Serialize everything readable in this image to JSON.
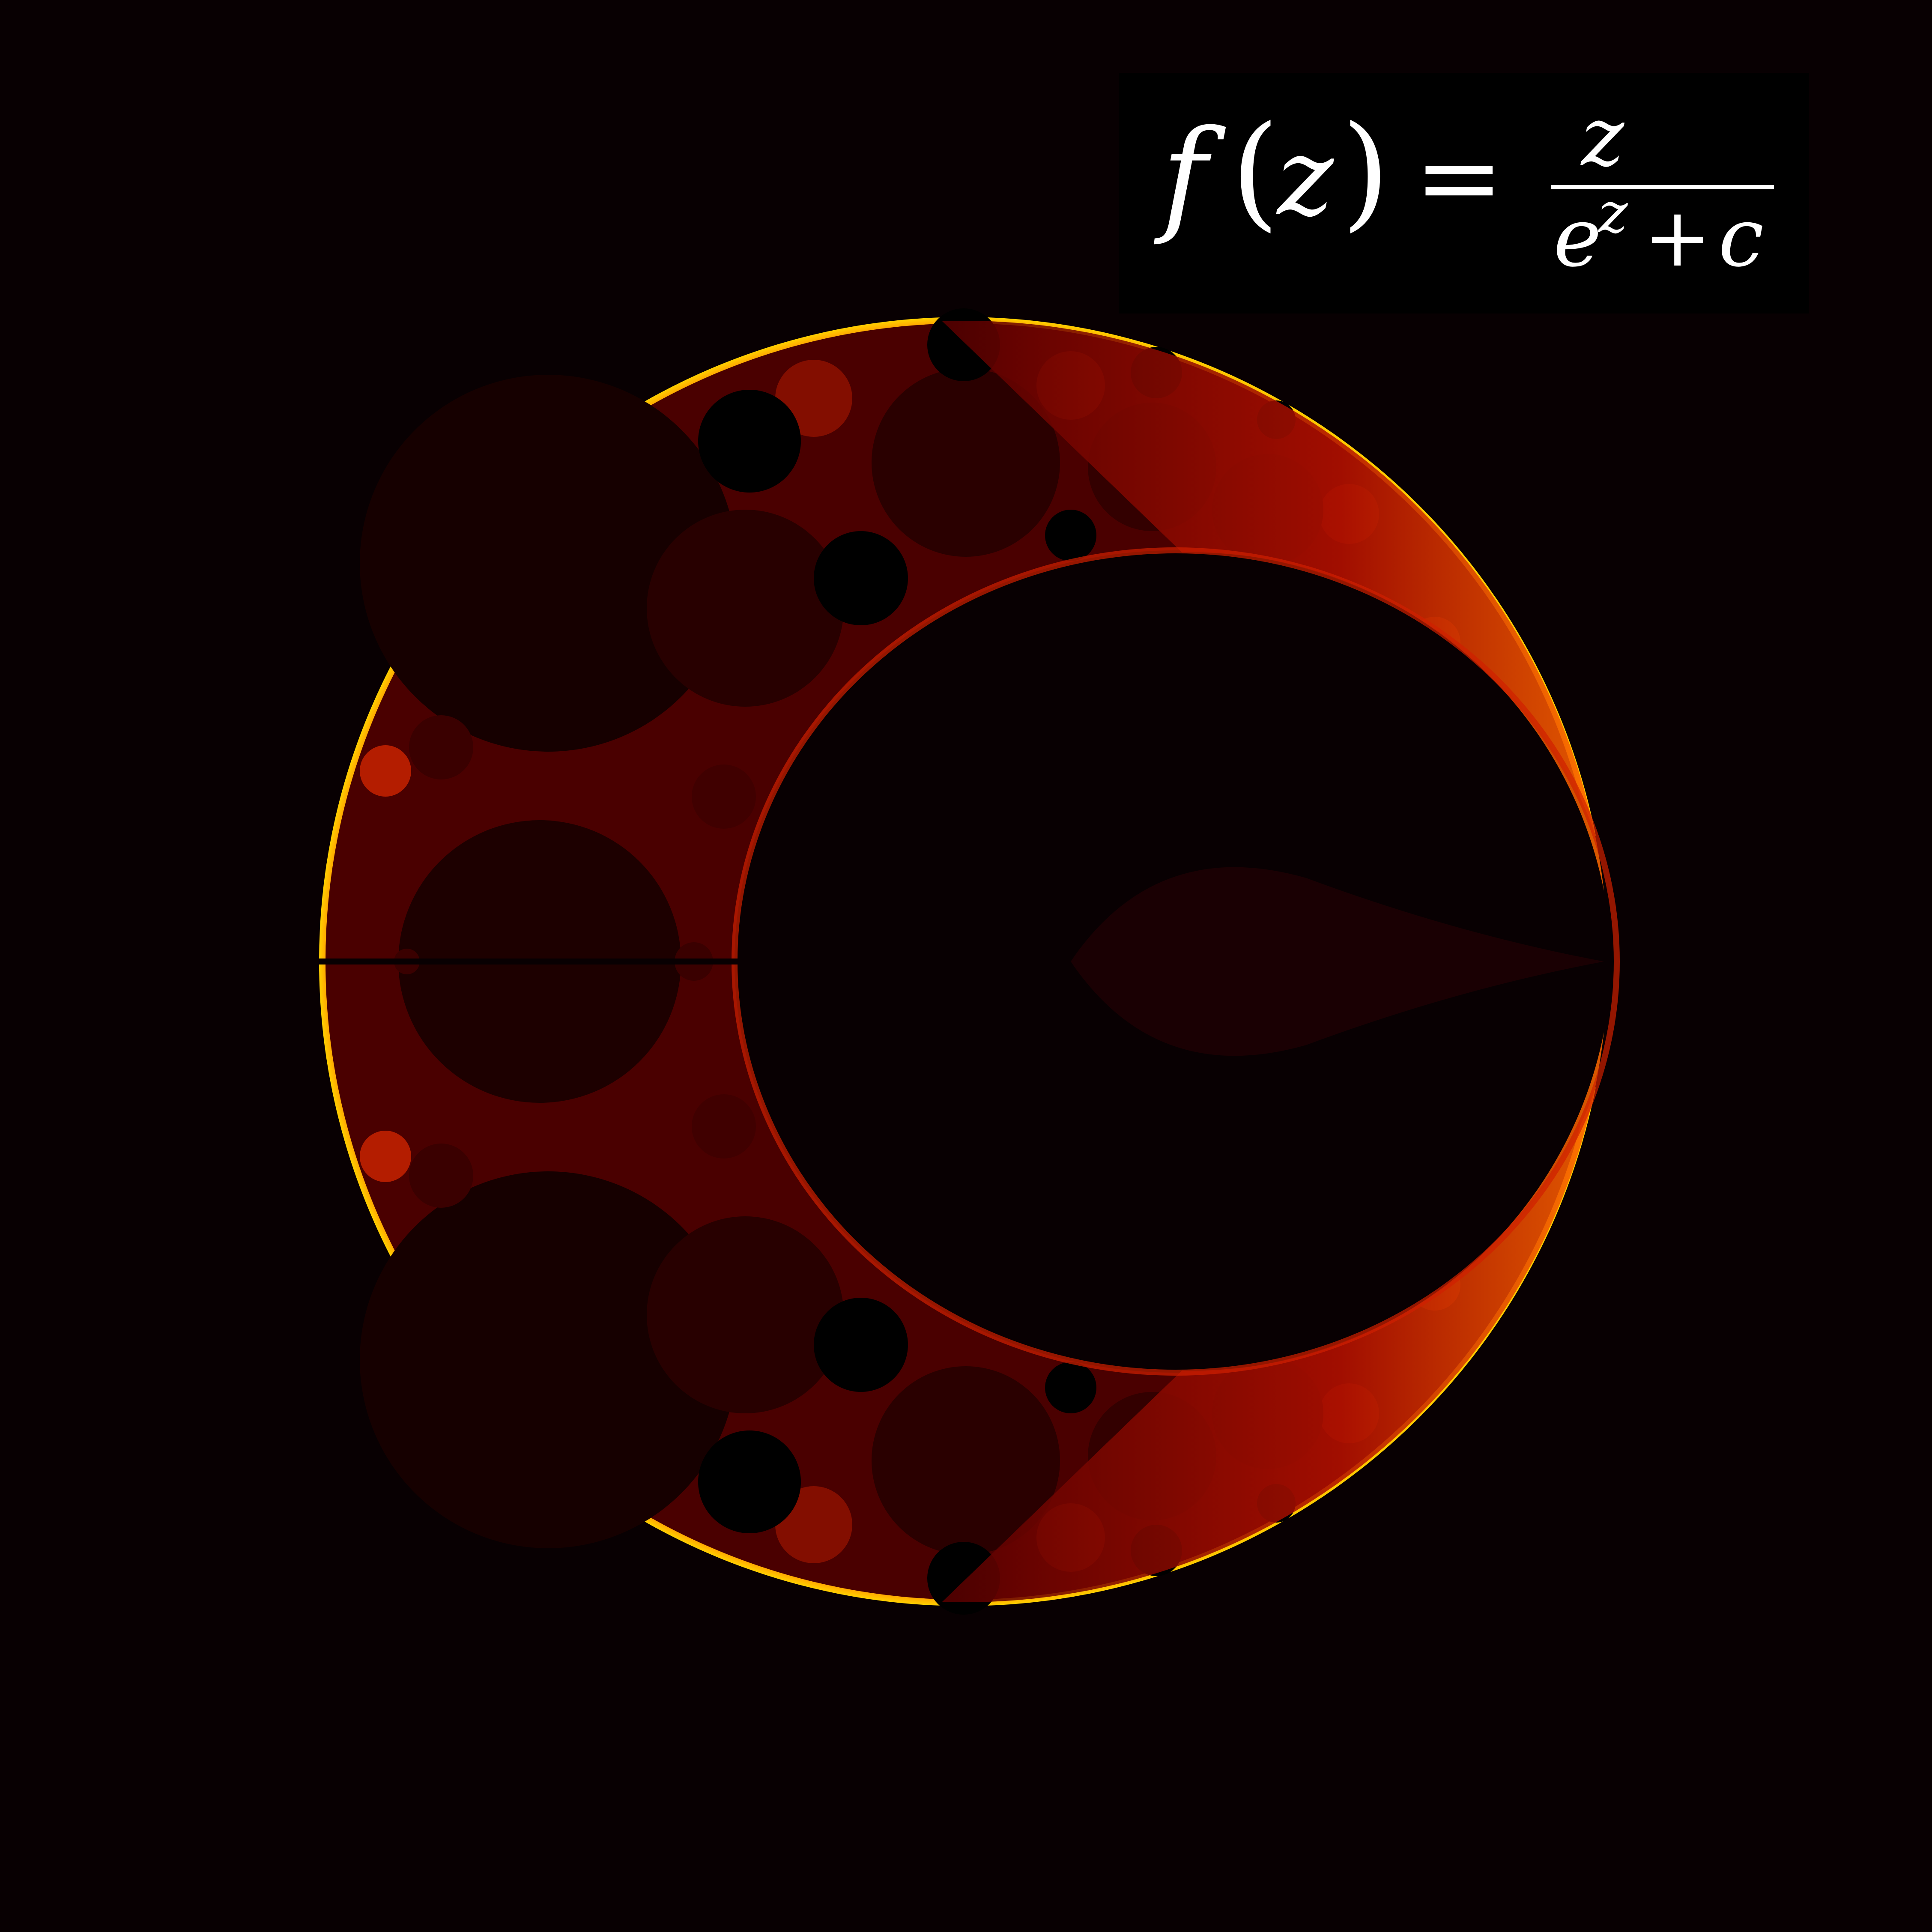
{
  "formula": {
    "func": "f",
    "open_paren": "(",
    "var": "z",
    "close_paren": ")",
    "equals": "=",
    "numerator": "z",
    "denominator_base": "e",
    "denominator_exp": "z",
    "denominator_plus": "+",
    "denominator_const": "c"
  },
  "colors": {
    "background": "#080002",
    "formula_box": "#000000",
    "formula_text": "#ffffff",
    "basin": "#1a0000",
    "basin_dark": "#120000",
    "edge_red": "#d01000",
    "edge_orange": "#ff5000",
    "edge_yellow": "#ffd000",
    "hole": "#000000"
  }
}
